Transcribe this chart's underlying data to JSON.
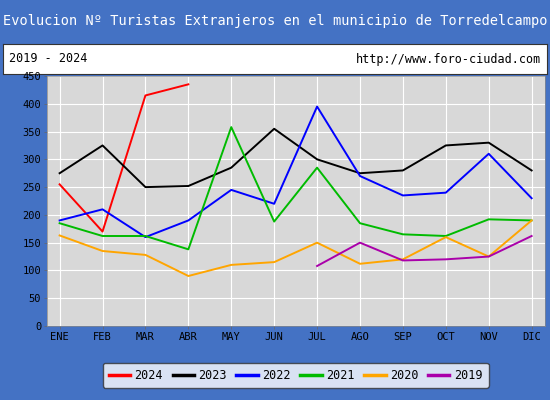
{
  "title": "Evolucion Nº Turistas Extranjeros en el municipio de Torredelcampo",
  "subtitle_left": "2019 - 2024",
  "subtitle_right": "http://www.foro-ciudad.com",
  "months": [
    "ENE",
    "FEB",
    "MAR",
    "ABR",
    "MAY",
    "JUN",
    "JUL",
    "AGO",
    "SEP",
    "OCT",
    "NOV",
    "DIC"
  ],
  "ylim": [
    0,
    450
  ],
  "yticks": [
    0,
    50,
    100,
    150,
    200,
    250,
    300,
    350,
    400,
    450
  ],
  "series": {
    "2024": {
      "color": "#ff0000",
      "values": [
        255,
        170,
        415,
        435,
        null,
        null,
        null,
        null,
        null,
        null,
        null,
        null
      ]
    },
    "2023": {
      "color": "#000000",
      "values": [
        275,
        325,
        250,
        252,
        285,
        355,
        300,
        275,
        280,
        325,
        330,
        280
      ]
    },
    "2022": {
      "color": "#0000ff",
      "values": [
        190,
        210,
        160,
        190,
        245,
        220,
        395,
        270,
        235,
        240,
        310,
        230
      ]
    },
    "2021": {
      "color": "#00bb00",
      "values": [
        185,
        162,
        162,
        138,
        358,
        188,
        285,
        185,
        165,
        162,
        192,
        190
      ]
    },
    "2020": {
      "color": "#ffa500",
      "values": [
        163,
        135,
        128,
        90,
        110,
        115,
        150,
        112,
        120,
        160,
        125,
        190
      ]
    },
    "2019": {
      "color": "#aa00aa",
      "values": [
        null,
        null,
        null,
        null,
        null,
        null,
        108,
        150,
        118,
        120,
        125,
        162
      ]
    }
  },
  "legend_order": [
    "2024",
    "2023",
    "2022",
    "2021",
    "2020",
    "2019"
  ],
  "title_bgcolor": "#4472c4",
  "title_fgcolor": "#ffffff",
  "plot_bgcolor": "#d8d8d8",
  "grid_color": "#ffffff",
  "fig_bgcolor": "#4472c4"
}
